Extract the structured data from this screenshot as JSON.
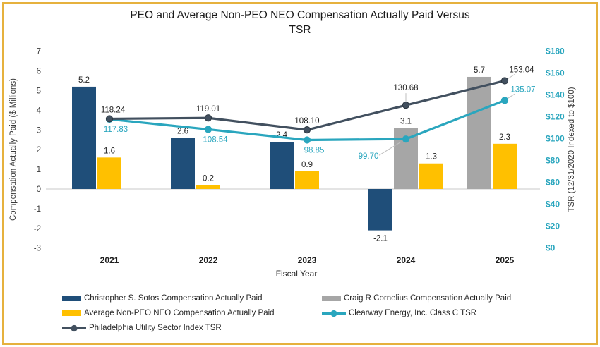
{
  "title": "PEO and Average Non-PEO NEO Compensation Actually Paid Versus\nTSR",
  "frame_border_color": "#E6B13D",
  "chart_data": {
    "type": "combo-bar-line",
    "categories": [
      "2021",
      "2022",
      "2023",
      "2024",
      "2025"
    ],
    "x_axis": {
      "label": "Fiscal Year"
    },
    "left_axis": {
      "label": "Compensation Actually Paid ($ Millions)",
      "min": -3,
      "max": 7,
      "step": 1
    },
    "right_axis": {
      "label": "TSR (12/31/2020 Indexed to $100)",
      "min": 0,
      "max": 180,
      "step": 20,
      "tick_prefix": "$",
      "color": "#2AA6BE"
    },
    "grid": "off",
    "bar_series": [
      {
        "key": "sotos",
        "name": "Christopher S. Sotos Compensation Actually Paid",
        "color": "#1F4E79",
        "values": [
          5.2,
          2.6,
          2.4,
          -2.1,
          null
        ]
      },
      {
        "key": "cornelius",
        "name": "Craig R Cornelius Compensation Actually Paid",
        "color": "#A6A6A6",
        "values": [
          null,
          null,
          null,
          3.1,
          5.7
        ]
      },
      {
        "key": "avg_non_peo",
        "name": "Average Non-PEO NEO Compensation Actually Paid",
        "color": "#FFC000",
        "values": [
          1.6,
          0.2,
          0.9,
          1.3,
          2.3
        ]
      }
    ],
    "line_series": [
      {
        "key": "clearway",
        "name": "Clearway Energy, Inc. Class C TSR",
        "color": "#2AA6BE",
        "label_color": "#2AA6BE",
        "axis": "right",
        "values": [
          117.83,
          108.54,
          98.85,
          99.7,
          135.07
        ]
      },
      {
        "key": "philly",
        "name": "Philadelphia Utility Sector Index TSR",
        "color": "#42505F",
        "label_color": "#1F1F1F",
        "axis": "right",
        "values": [
          118.24,
          119.01,
          108.1,
          130.68,
          153.04
        ]
      }
    ],
    "legend_position": "bottom-left"
  },
  "legend": {
    "items": [
      {
        "key": "sotos",
        "label": "Christopher S. Sotos Compensation Actually Paid",
        "swatch": "bar",
        "color": "#1F4E79"
      },
      {
        "key": "cornelius",
        "label": "Craig R Cornelius Compensation Actually Paid",
        "swatch": "bar",
        "color": "#A6A6A6"
      },
      {
        "key": "avg_non_peo",
        "label": "Average Non-PEO NEO Compensation Actually Paid",
        "swatch": "bar",
        "color": "#FFC000"
      },
      {
        "key": "clearway",
        "label": "Clearway Energy, Inc. Class C TSR",
        "swatch": "line",
        "color": "#2AA6BE"
      },
      {
        "key": "philly",
        "label": "Philadelphia Utility Sector Index TSR",
        "swatch": "line",
        "color": "#42505F"
      }
    ]
  }
}
